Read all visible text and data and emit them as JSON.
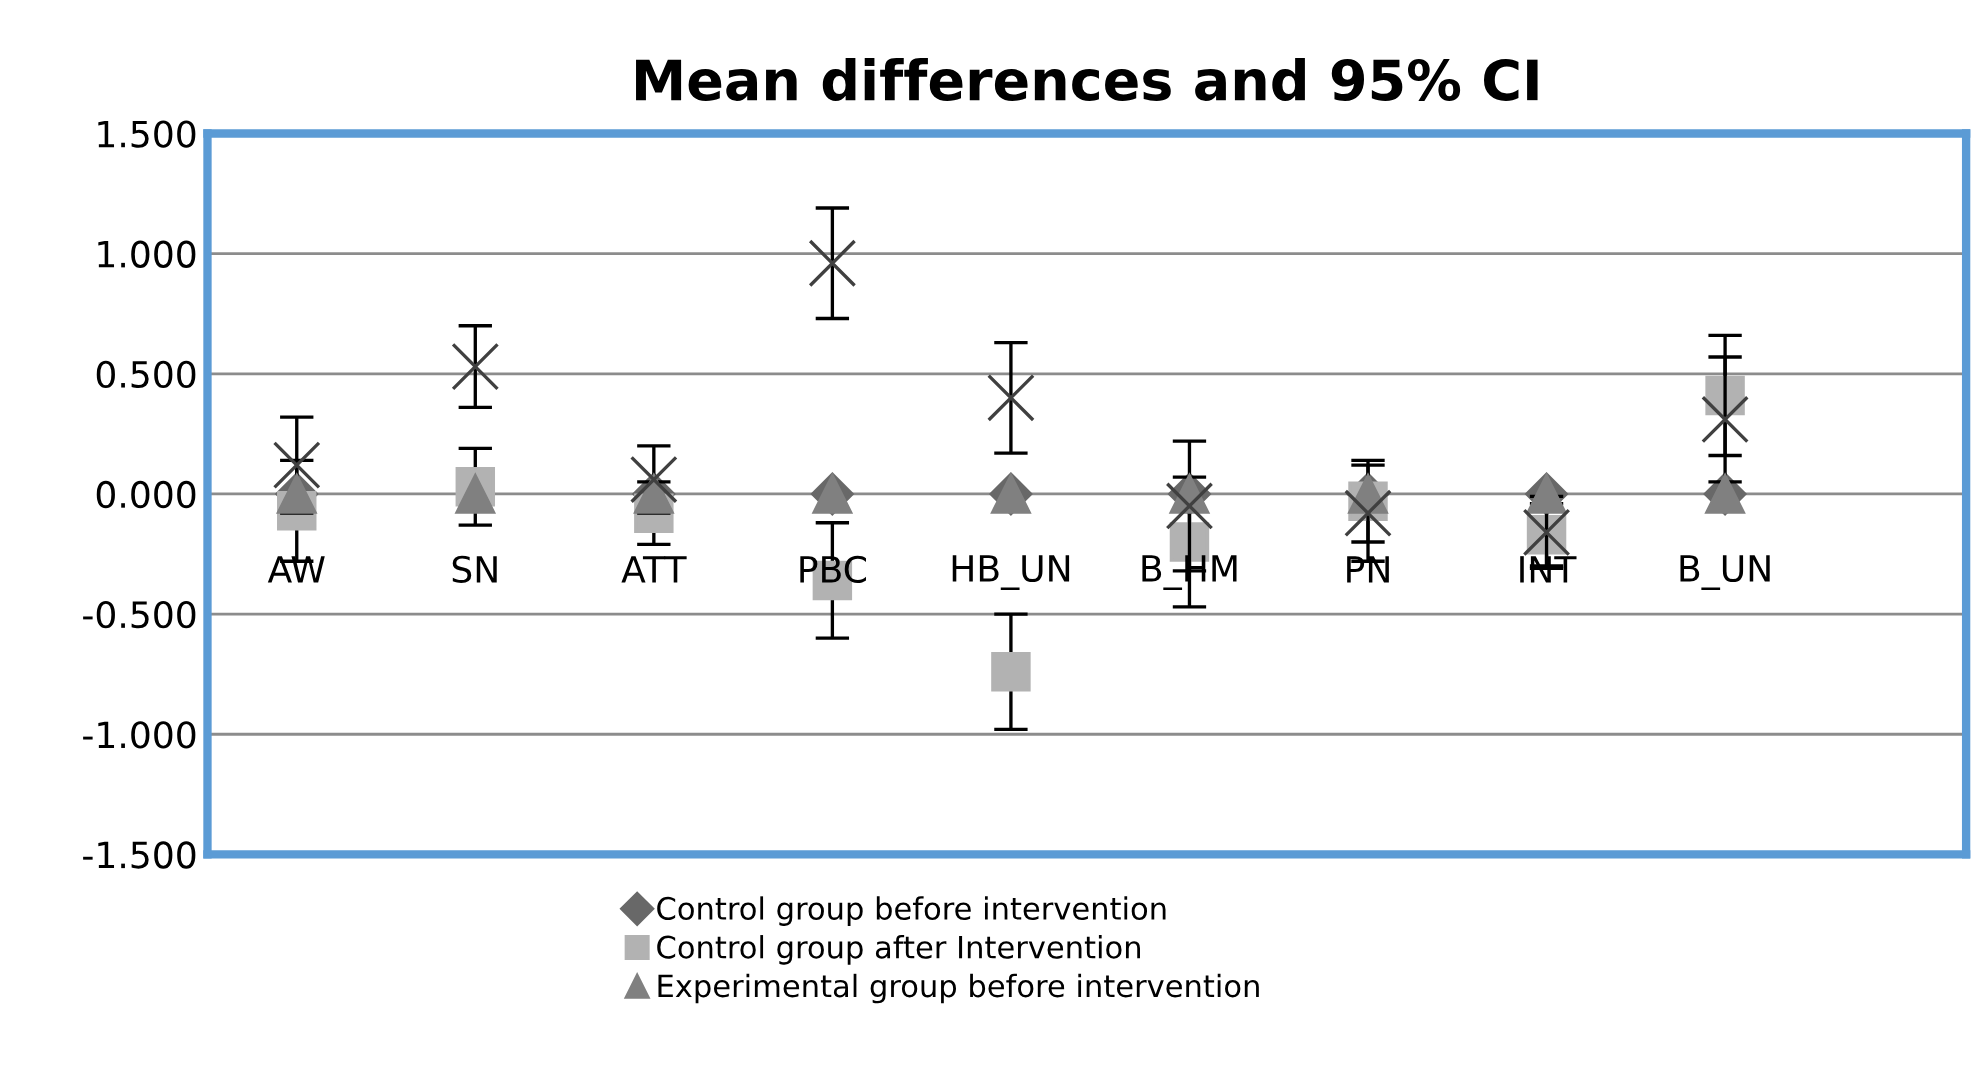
{
  "chart_data": {
    "type": "scatter",
    "title": "Mean differences and 95% CI",
    "categories": [
      "AW",
      "SN",
      "ATT",
      "PBC",
      "HB_UN",
      "B_HM",
      "PN",
      "INT",
      "B_UN"
    ],
    "series": [
      {
        "name": "Control group before intervention",
        "color": "#686868",
        "marker": "diamond",
        "values": [
          0,
          null,
          0,
          0,
          0,
          0,
          0,
          0,
          0
        ]
      },
      {
        "name": "Control group after Intervention",
        "color": "#b2b2b2",
        "marker": "square",
        "values": [
          -0.07,
          0.03,
          -0.08,
          -0.36,
          -0.74,
          -0.2,
          -0.03,
          -0.17,
          0.41
        ],
        "errors": [
          0.21,
          0.16,
          0.13,
          0.24,
          0.24,
          0.27,
          0.17,
          0.13,
          0.25
        ]
      },
      {
        "name": "Experimental group before intervention",
        "color": "#808080",
        "marker": "triangle",
        "values": [
          0,
          0,
          0,
          0,
          0,
          0,
          0,
          0,
          0
        ]
      },
      {
        "color": "#404040",
        "marker": "cross",
        "values": [
          0.12,
          0.53,
          0.06,
          0.96,
          0.4,
          -0.05,
          -0.08,
          -0.16,
          0.31
        ],
        "errors": [
          0.2,
          0.17,
          0.14,
          0.23,
          0.23,
          0.27,
          0.2,
          0.15,
          0.26
        ]
      }
    ],
    "ylim": [
      -1.5,
      1.5
    ],
    "yticks": [
      {
        "value": -1.5,
        "label": "-1.500"
      },
      {
        "value": -1.0,
        "label": "-1.000"
      },
      {
        "value": -0.5,
        "label": "-0.500"
      },
      {
        "value": 0,
        "label": "0.000"
      },
      {
        "value": 0.5,
        "label": "0.500"
      },
      {
        "value": 1.0,
        "label": "1.000"
      },
      {
        "value": 1.5,
        "label": "1.500"
      }
    ],
    "grid": "y",
    "legend": "bottom"
  }
}
